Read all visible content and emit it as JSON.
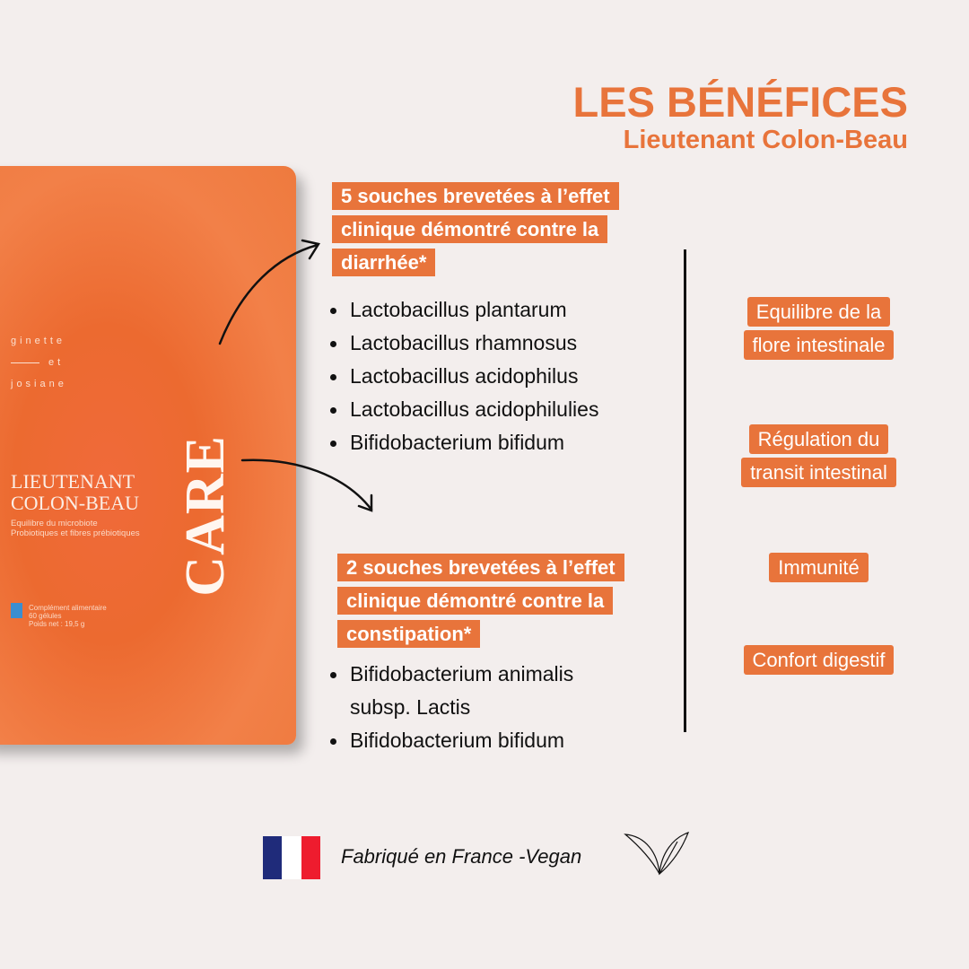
{
  "header": {
    "title": "LES BÉNÉFICES",
    "subtitle": "Lieutenant Colon-Beau"
  },
  "package": {
    "brand": [
      "ginette",
      "et",
      "josiane"
    ],
    "name": [
      "LIEUTENANT",
      "COLON-BEAU"
    ],
    "subtitle": [
      "Equilibre du microbiote",
      "Probiotiques et fibres prébiotiques"
    ],
    "mark": "CARE",
    "info": [
      "Complément alimentaire",
      "60 gélules",
      "Poids net : 19,5 g"
    ]
  },
  "section1": {
    "heading": "5 souches brevetées à l’effet clinique démontré contre la diarrhée*",
    "items": [
      "Lactobacillus plantarum",
      "Lactobacillus rhamnosus",
      "Lactobacillus acidophilus",
      "Lactobacillus acidophilulies",
      "Bifidobacterium bifidum"
    ]
  },
  "section2": {
    "heading": "2 souches  brevetées à l’effet clinique démontré contre la constipation*",
    "items": [
      "Bifidobacterium animalis subsp. Lactis",
      "Bifidobacterium bifidum"
    ]
  },
  "benefits": [
    "Equilibre de la flore intestinale",
    "Régulation du transit intestinal",
    "Immunité",
    "Confort digestif"
  ],
  "footer": {
    "text": "Fabriqué en France -Vegan",
    "flag_colors": [
      "#1f2b7a",
      "#ffffff",
      "#ee1c2e"
    ],
    "icon": "leaf-icon"
  },
  "colors": {
    "accent": "#e8743b",
    "background": "#f3eeed"
  }
}
